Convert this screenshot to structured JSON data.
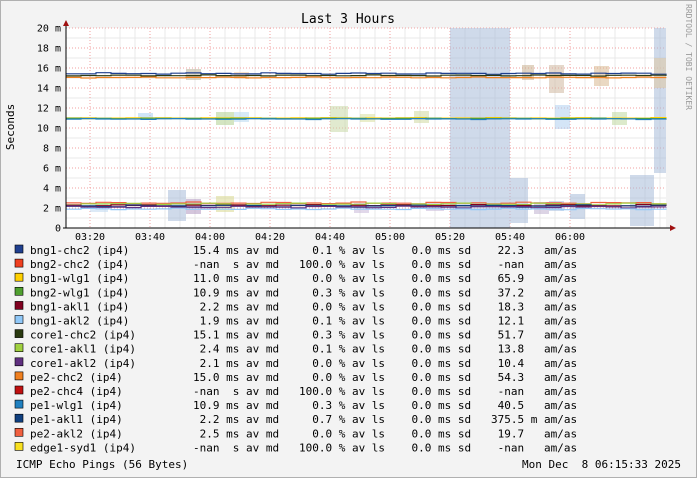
{
  "chart_data": {
    "type": "line",
    "title": "Last 3 Hours",
    "ylabel": "Seconds",
    "side_label": "RRDTOOL / TOBI OETIKER",
    "ylim": [
      0,
      20
    ],
    "y_ticks": [
      "0",
      "2 m",
      "4 m",
      "6 m",
      "8 m",
      "10 m",
      "12 m",
      "14 m",
      "16 m",
      "18 m",
      "20 m"
    ],
    "x_ticks": [
      "03:20",
      "03:40",
      "04:00",
      "04:20",
      "04:40",
      "05:00",
      "05:20",
      "05:40",
      "06:00"
    ],
    "grid": true,
    "columns": [
      "median",
      "loss",
      "std-dev"
    ],
    "series": [
      {
        "name": "bng1-chc2 (ip4)",
        "color": "#1f3f8f",
        "median_ms": 15.4,
        "loss_pct": 0.1,
        "sd_ms": 0.0,
        "stats": "15.4 ms av md     0.1 % av ls    0.0 ms sd    22.3   am/as"
      },
      {
        "name": "bng2-chc2 (ip4)",
        "color": "#f04020",
        "median_ms": null,
        "loss_pct": 100.0,
        "sd_ms": 0.0,
        "stats": "-nan  s av md   100.0 % av ls    0.0 ms sd    -nan   am/as"
      },
      {
        "name": "bng1-wlg1 (ip4)",
        "color": "#ffd000",
        "median_ms": 11.0,
        "loss_pct": 0.0,
        "sd_ms": 0.0,
        "stats": "11.0 ms av md     0.0 % av ls    0.0 ms sd    65.9   am/as"
      },
      {
        "name": "bng2-wlg1 (ip4)",
        "color": "#50a030",
        "median_ms": 10.9,
        "loss_pct": 0.3,
        "sd_ms": 0.0,
        "stats": "10.9 ms av md     0.3 % av ls    0.0 ms sd    37.2   am/as"
      },
      {
        "name": "bng1-akl1 (ip4)",
        "color": "#800020",
        "median_ms": 2.2,
        "loss_pct": 0.0,
        "sd_ms": 0.0,
        "stats": " 2.2 ms av md     0.0 % av ls    0.0 ms sd    18.3   am/as"
      },
      {
        "name": "bng1-akl2 (ip4)",
        "color": "#90c8f8",
        "median_ms": 1.9,
        "loss_pct": 0.1,
        "sd_ms": 0.0,
        "stats": " 1.9 ms av md     0.1 % av ls    0.0 ms sd    12.1   am/as"
      },
      {
        "name": "core1-chc2 (ip4)",
        "color": "#2a3a10",
        "median_ms": 15.1,
        "loss_pct": 0.3,
        "sd_ms": 0.0,
        "stats": "15.1 ms av md     0.3 % av ls    0.0 ms sd    51.7   am/as"
      },
      {
        "name": "core1-akl1 (ip4)",
        "color": "#a0d040",
        "median_ms": 2.4,
        "loss_pct": 0.1,
        "sd_ms": 0.0,
        "stats": " 2.4 ms av md     0.1 % av ls    0.0 ms sd    13.8   am/as"
      },
      {
        "name": "core1-akl2 (ip4)",
        "color": "#603080",
        "median_ms": 2.1,
        "loss_pct": 0.0,
        "sd_ms": 0.0,
        "stats": " 2.1 ms av md     0.0 % av ls    0.0 ms sd    10.4   am/as"
      },
      {
        "name": "pe2-chc2 (ip4)",
        "color": "#f08020",
        "median_ms": 15.0,
        "loss_pct": 0.0,
        "sd_ms": 0.0,
        "stats": "15.0 ms av md     0.0 % av ls    0.0 ms sd    54.3   am/as"
      },
      {
        "name": "pe2-chc4 (ip4)",
        "color": "#c01010",
        "median_ms": null,
        "loss_pct": 100.0,
        "sd_ms": 0.0,
        "stats": "-nan  s av md   100.0 % av ls    0.0 ms sd    -nan   am/as"
      },
      {
        "name": "pe1-wlg1 (ip4)",
        "color": "#2080c0",
        "median_ms": 10.9,
        "loss_pct": 0.3,
        "sd_ms": 0.0,
        "stats": "10.9 ms av md     0.3 % av ls    0.0 ms sd    40.5   am/as"
      },
      {
        "name": "pe1-akl1 (ip4)",
        "color": "#104080",
        "median_ms": 2.2,
        "loss_pct": 0.7,
        "sd_ms": 0.0,
        "stats": " 2.2 ms av md     0.7 % av ls    0.0 ms sd   375.5 m am/as"
      },
      {
        "name": "pe2-akl2 (ip4)",
        "color": "#f06040",
        "median_ms": 2.5,
        "loss_pct": 0.0,
        "sd_ms": 0.0,
        "stats": " 2.5 ms av md     0.0 % av ls    0.0 ms sd    19.7   am/as"
      },
      {
        "name": "edge1-syd1 (ip4)",
        "color": "#f8e020",
        "median_ms": null,
        "loss_pct": 100.0,
        "sd_ms": 0.0,
        "stats": "-nan  s av md   100.0 % av ls    0.0 ms sd    -nan   am/as"
      }
    ],
    "footer_left": "ICMP Echo Pings (56 Bytes)",
    "footer_right": "Mon Dec  8 06:15:33 2025"
  },
  "colors": {
    "background": "#f3f3f3",
    "plot_bg": "#ffffff",
    "grid_minor": "#e8e8e8",
    "grid_major": "#f0a0a0",
    "smoke": "#a8bcd8",
    "axis_arrow": "#a01010"
  }
}
